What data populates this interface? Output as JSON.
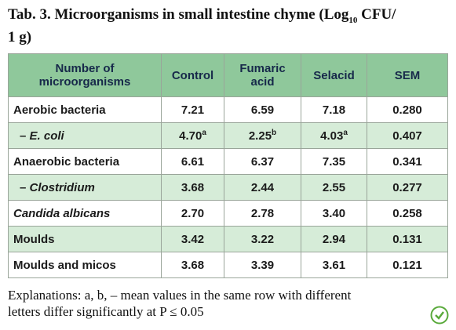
{
  "title": {
    "main": "Tab. 3. Microorganisms in small intestine chyme (Log",
    "sub": "10",
    "rest": " CFU/",
    "line2": "1 g)"
  },
  "table": {
    "headers": [
      [
        "Number of",
        "microorganisms"
      ],
      [
        "Control"
      ],
      [
        "Fumaric",
        "acid"
      ],
      [
        "Selacid"
      ],
      [
        "SEM"
      ]
    ],
    "rows": [
      {
        "dash": null,
        "label": "Aerobic bacteria",
        "italic": false,
        "cells": [
          {
            "v": "7.21"
          },
          {
            "v": "6.59"
          },
          {
            "v": "7.18"
          },
          {
            "v": "0.280"
          }
        ]
      },
      {
        "dash": "–",
        "label": "E. coli",
        "italic": true,
        "cells": [
          {
            "v": "4.70",
            "sup": "a"
          },
          {
            "v": "2.25",
            "sup": "b"
          },
          {
            "v": "4.03",
            "sup": "a"
          },
          {
            "v": "0.407"
          }
        ]
      },
      {
        "dash": null,
        "label": "Anaerobic bacteria",
        "italic": false,
        "cells": [
          {
            "v": "6.61"
          },
          {
            "v": "6.37"
          },
          {
            "v": "7.35"
          },
          {
            "v": "0.341"
          }
        ]
      },
      {
        "dash": "–",
        "label": "Clostridium",
        "italic": true,
        "cells": [
          {
            "v": "3.68"
          },
          {
            "v": "2.44"
          },
          {
            "v": "2.55"
          },
          {
            "v": "0.277"
          }
        ]
      },
      {
        "dash": null,
        "label": "Candida albicans",
        "italic": true,
        "cells": [
          {
            "v": "2.70"
          },
          {
            "v": "2.78"
          },
          {
            "v": "3.40"
          },
          {
            "v": "0.258"
          }
        ]
      },
      {
        "dash": null,
        "label": "Moulds",
        "italic": false,
        "cells": [
          {
            "v": "3.42"
          },
          {
            "v": "3.22"
          },
          {
            "v": "2.94"
          },
          {
            "v": "0.131"
          }
        ]
      },
      {
        "dash": null,
        "label": "Moulds and micos",
        "italic": false,
        "cells": [
          {
            "v": "3.68"
          },
          {
            "v": "3.39"
          },
          {
            "v": "3.61"
          },
          {
            "v": "0.121"
          }
        ]
      }
    ]
  },
  "note": {
    "line1": "Explanations: a, b, – mean values in the same row with different",
    "line2": "letters differ significantly at P ≤ 0.05"
  }
}
